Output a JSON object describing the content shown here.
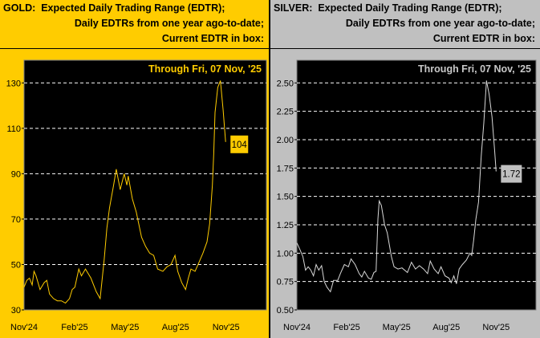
{
  "chart_data": [
    {
      "type": "line",
      "name": "gold",
      "title_lines": [
        "GOLD:  Expected Daily Trading Range (EDTR);",
        "Daily EDTRs from one year ago-to-date;",
        "Current EDTR in box:"
      ],
      "annotation": "Through Fri, 07 Nov, '25",
      "current_value_label": "104",
      "ylim": [
        30,
        140
      ],
      "yticks": [
        30,
        50,
        70,
        90,
        110,
        130
      ],
      "ytick_labels": [
        "30",
        "50",
        "70",
        "90",
        "110",
        "130"
      ],
      "xlim": [
        0,
        14.4
      ],
      "xticks": [
        0,
        3,
        6,
        9,
        12
      ],
      "xtick_labels": [
        "Nov'24",
        "Feb'25",
        "May'25",
        "Aug'25",
        "Nov'25"
      ],
      "x_unit": "months since Nov'24",
      "grid": "horizontal dashed",
      "colors": {
        "panel": "#FFCC00",
        "line": "#FFCC00",
        "box": "#FFCC00",
        "text": "#FFCC00"
      },
      "points": [
        [
          0,
          40
        ],
        [
          0.16,
          43
        ],
        [
          0.32,
          44
        ],
        [
          0.48,
          41
        ],
        [
          0.59,
          47
        ],
        [
          0.71,
          45
        ],
        [
          0.95,
          39
        ],
        [
          1.19,
          42
        ],
        [
          1.35,
          43
        ],
        [
          1.51,
          37
        ],
        [
          1.75,
          35
        ],
        [
          1.98,
          34
        ],
        [
          2.22,
          34
        ],
        [
          2.46,
          33
        ],
        [
          2.7,
          35
        ],
        [
          2.86,
          39
        ],
        [
          3.02,
          40
        ],
        [
          3.25,
          48
        ],
        [
          3.41,
          45
        ],
        [
          3.65,
          48
        ],
        [
          3.97,
          44
        ],
        [
          4.29,
          38
        ],
        [
          4.52,
          35
        ],
        [
          4.76,
          52
        ],
        [
          4.92,
          66
        ],
        [
          5.08,
          75
        ],
        [
          5.32,
          85
        ],
        [
          5.48,
          92
        ],
        [
          5.71,
          83
        ],
        [
          5.95,
          90
        ],
        [
          6.11,
          85
        ],
        [
          6.19,
          89
        ],
        [
          6.43,
          79
        ],
        [
          6.67,
          73
        ],
        [
          6.98,
          62
        ],
        [
          7.22,
          58
        ],
        [
          7.46,
          55
        ],
        [
          7.7,
          54
        ],
        [
          7.94,
          48
        ],
        [
          8.25,
          47
        ],
        [
          8.49,
          49
        ],
        [
          8.73,
          50
        ],
        [
          8.97,
          54
        ],
        [
          9.13,
          47
        ],
        [
          9.37,
          42
        ],
        [
          9.6,
          39
        ],
        [
          9.76,
          44
        ],
        [
          9.92,
          48
        ],
        [
          10.16,
          47
        ],
        [
          10.4,
          51
        ],
        [
          10.63,
          55
        ],
        [
          10.87,
          60
        ],
        [
          11.03,
          68
        ],
        [
          11.19,
          85
        ],
        [
          11.27,
          99
        ],
        [
          11.35,
          117
        ],
        [
          11.51,
          128
        ],
        [
          11.67,
          131
        ],
        [
          11.83,
          118
        ],
        [
          11.98,
          104
        ]
      ]
    },
    {
      "type": "line",
      "name": "silver",
      "title_lines": [
        "SILVER:  Expected Daily Trading Range (EDTR);",
        "Daily EDTRs from one year ago-to-date;",
        "Current EDTR in box:"
      ],
      "annotation": "Through Fri, 07 Nov, '25",
      "current_value_label": "1.72",
      "ylim": [
        0.5,
        2.7
      ],
      "yticks": [
        0.5,
        0.75,
        1,
        1.25,
        1.5,
        1.75,
        2,
        2.25,
        2.5
      ],
      "ytick_labels": [
        "0.50",
        "0.75",
        "1.00",
        "1.25",
        "1.50",
        "1.75",
        "2.00",
        "2.25",
        "2.50"
      ],
      "xlim": [
        0,
        14.4
      ],
      "xticks": [
        0,
        3,
        6,
        9,
        12
      ],
      "xtick_labels": [
        "Nov'24",
        "Feb'25",
        "May'25",
        "Aug'25",
        "Nov'25"
      ],
      "x_unit": "months since Nov'24",
      "grid": "horizontal dashed",
      "colors": {
        "panel": "#C0C0C0",
        "line": "#D8D8D8",
        "box": "#C0C0C0",
        "text": "#C8C8C8"
      },
      "points": [
        [
          0,
          1.09
        ],
        [
          0.19,
          1.03
        ],
        [
          0.36,
          0.97
        ],
        [
          0.52,
          0.85
        ],
        [
          0.68,
          0.88
        ],
        [
          0.84,
          0.85
        ],
        [
          1,
          0.8
        ],
        [
          1.16,
          0.9
        ],
        [
          1.32,
          0.85
        ],
        [
          1.49,
          0.89
        ],
        [
          1.65,
          0.75
        ],
        [
          1.81,
          0.7
        ],
        [
          2.02,
          0.66
        ],
        [
          2.21,
          0.76
        ],
        [
          2.46,
          0.76
        ],
        [
          2.62,
          0.82
        ],
        [
          2.86,
          0.9
        ],
        [
          3.1,
          0.88
        ],
        [
          3.26,
          0.95
        ],
        [
          3.51,
          0.9
        ],
        [
          3.75,
          0.82
        ],
        [
          3.91,
          0.79
        ],
        [
          4.07,
          0.84
        ],
        [
          4.31,
          0.78
        ],
        [
          4.48,
          0.77
        ],
        [
          4.64,
          0.83
        ],
        [
          4.77,
          0.84
        ],
        [
          4.88,
          1.3
        ],
        [
          4.96,
          1.46
        ],
        [
          5.09,
          1.42
        ],
        [
          5.28,
          1.25
        ],
        [
          5.44,
          1.18
        ],
        [
          5.69,
          0.97
        ],
        [
          5.85,
          0.88
        ],
        [
          6.09,
          0.86
        ],
        [
          6.33,
          0.87
        ],
        [
          6.66,
          0.83
        ],
        [
          6.9,
          0.92
        ],
        [
          7.14,
          0.86
        ],
        [
          7.38,
          0.89
        ],
        [
          7.63,
          0.86
        ],
        [
          7.87,
          0.82
        ],
        [
          8.03,
          0.93
        ],
        [
          8.27,
          0.86
        ],
        [
          8.51,
          0.82
        ],
        [
          8.68,
          0.88
        ],
        [
          8.92,
          0.8
        ],
        [
          9.16,
          0.78
        ],
        [
          9.29,
          0.74
        ],
        [
          9.45,
          0.8
        ],
        [
          9.61,
          0.73
        ],
        [
          9.77,
          0.86
        ],
        [
          9.97,
          0.9
        ],
        [
          10.21,
          0.94
        ],
        [
          10.42,
          1
        ],
        [
          10.53,
          0.98
        ],
        [
          10.65,
          1.12
        ],
        [
          10.78,
          1.3
        ],
        [
          10.94,
          1.45
        ],
        [
          11.1,
          1.85
        ],
        [
          11.26,
          2.15
        ],
        [
          11.42,
          2.52
        ],
        [
          11.58,
          2.4
        ],
        [
          11.75,
          2.2
        ],
        [
          11.91,
          1.9
        ],
        [
          12,
          1.72
        ]
      ]
    }
  ]
}
